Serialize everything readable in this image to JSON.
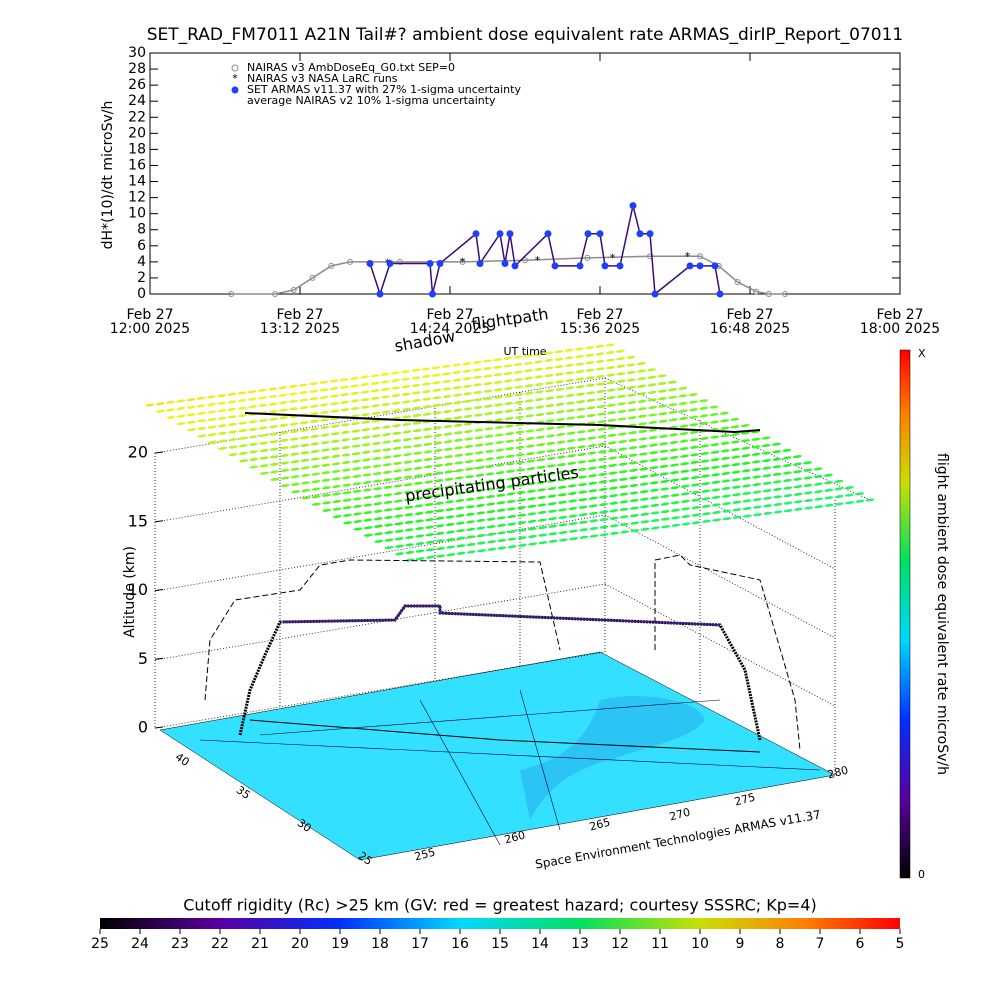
{
  "title": "SET_RAD_FM7011  A21N Tail#? ambient dose equivalent rate ARMAS_dirIP_Report_07011",
  "chart_data": [
    {
      "type": "scatter",
      "y_label": "dH*(10)/dt microSv/h",
      "xlim": [
        12,
        18
      ],
      "xticks": [
        {
          "value": 12,
          "label": [
            "Feb 27",
            "12:00 2025"
          ]
        },
        {
          "value": 13.2,
          "label": [
            "Feb 27",
            "13:12 2025"
          ]
        },
        {
          "value": 14.4,
          "label": [
            "Feb 27",
            "14:24 2025"
          ]
        },
        {
          "value": 15.6,
          "label": [
            "Feb 27",
            "15:36 2025"
          ]
        },
        {
          "value": 16.8,
          "label": [
            "Feb 27",
            "16:48 2025"
          ]
        },
        {
          "value": 18,
          "label": [
            "Feb 27",
            "18:00 2025"
          ]
        }
      ],
      "ylim": [
        0,
        30
      ],
      "yticks": [
        0,
        2,
        4,
        6,
        8,
        10,
        12,
        14,
        16,
        18,
        20,
        22,
        24,
        26,
        28,
        30
      ],
      "series": [
        {
          "name": "NAIRAS v3 AmbDoseEq_G0.txt SEP=0",
          "color": "#8c8c8c",
          "marker": "circle",
          "x": [
            12.65,
            13.0,
            13.15,
            13.3,
            13.45,
            13.6,
            14.0,
            14.5,
            15.0,
            15.5,
            16.0,
            16.4,
            16.55,
            16.7,
            16.85,
            16.95,
            17.08
          ],
          "values": [
            0,
            0,
            0.5,
            2,
            3.5,
            4,
            4,
            4,
            4.2,
            4.5,
            4.7,
            4.7,
            3.5,
            1.5,
            0.3,
            0,
            0
          ]
        },
        {
          "name": "NAIRAS v3 NASA LaRC runs",
          "color": "#000000",
          "marker": "asterisk",
          "x": [
            13.9,
            14.5,
            15.1,
            15.7,
            16.3
          ],
          "values": [
            3.8,
            3.9,
            4.1,
            4.4,
            4.6
          ]
        },
        {
          "name": "SET ARMAS v11.37 with 27% 1-sigma uncertainty",
          "color": "#1f3fff",
          "line_color": "#3c0a78",
          "marker": "dot",
          "x": [
            13.76,
            13.84,
            13.92,
            14.24,
            14.26,
            14.32,
            14.608,
            14.64,
            14.8,
            14.84,
            14.88,
            14.92,
            15.184,
            15.24,
            15.44,
            15.504,
            15.6,
            15.64,
            15.76,
            15.864,
            15.92,
            16.0,
            16.04,
            16.32,
            16.4,
            16.52,
            16.56
          ],
          "values": [
            3.8,
            0,
            3.8,
            3.8,
            0,
            3.8,
            7.5,
            3.8,
            7.5,
            3.8,
            7.5,
            3.5,
            7.5,
            3.5,
            3.5,
            7.5,
            7.5,
            3.5,
            3.5,
            11,
            7.5,
            7.5,
            0,
            3.5,
            3.5,
            3.5,
            0
          ]
        }
      ],
      "legend_note": "average NAIRAS v2 10% 1-sigma uncertainty"
    },
    {
      "type": "surface3d",
      "z_label": "Altitude (km)",
      "zticks": [
        0,
        5,
        10,
        15,
        20
      ],
      "lat_ticks": [
        40,
        35,
        30,
        25
      ],
      "lon_ticks": [
        255,
        260,
        265,
        270,
        275,
        280
      ],
      "annotations": {
        "shadow": "shadow",
        "flightpath": "flightpath",
        "ut_time": "UT time",
        "particles": "precipitating particles",
        "credit": "Space Environment Technologies ARMAS v11.37"
      }
    }
  ],
  "dose_colorbar": {
    "label": "flight ambient dose equivalent rate microSv/h",
    "top": "X",
    "bottom": "0"
  },
  "rigidity_colorbar": {
    "label": "Cutoff rigidity (Rc) >25 km (GV: red = greatest hazard; courtesy SSSRC; Kp=4)",
    "lim": [
      25,
      5
    ],
    "ticks": [
      25,
      24,
      23,
      22,
      21,
      20,
      19,
      18,
      17,
      16,
      15,
      14,
      13,
      12,
      11,
      10,
      9,
      8,
      7,
      6,
      5
    ]
  }
}
